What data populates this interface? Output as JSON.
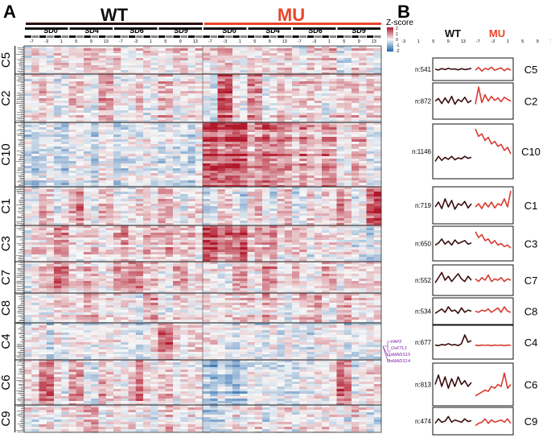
{
  "panels": {
    "a": "A",
    "b": "B"
  },
  "groups": [
    {
      "name": "WT",
      "color": "#111111"
    },
    {
      "name": "MU",
      "color": "#e8452a"
    }
  ],
  "timepoints": [
    "SD0",
    "SD4",
    "SD6",
    "SD9"
  ],
  "wt_ticks": [
    "-7",
    "-3",
    "1",
    "5",
    "9",
    "13",
    "-7",
    "-3",
    "1",
    "5",
    "9",
    "13",
    "-7",
    "-3",
    "1",
    "5",
    "9",
    "13",
    "-7",
    "-3",
    "1",
    "5",
    "9",
    "13"
  ],
  "mu_ticks": [
    "-7",
    "-3",
    "1",
    "5",
    "9",
    "13",
    "-7",
    "-3",
    "1",
    "5",
    "9",
    "13",
    "-7",
    "-3",
    "1",
    "5",
    "9",
    "13",
    "-7",
    "-3",
    "1",
    "5",
    "9",
    "13"
  ],
  "colorbar": {
    "title": "Z-score",
    "ticks": [
      "2",
      "1",
      "0",
      "-1",
      "-2"
    ],
    "high": "#b2182b",
    "mid": "#f7f7f7",
    "low": "#2166ac"
  },
  "genes": [
    "FAP2",
    "OsFTL1",
    "OsMADS15",
    "OsMADS14"
  ],
  "chart_data": {
    "type": "heatmap",
    "clusters": [
      {
        "name": "C5",
        "n": "n:541",
        "wt": [
          0.5,
          0.54,
          0.46,
          0.52,
          0.45,
          0.5,
          0.48,
          0.53,
          0.47,
          0.52,
          0.49,
          0.45
        ],
        "mu": [
          0.55,
          0.4,
          0.6,
          0.45,
          0.52,
          0.38,
          0.56,
          0.48,
          0.42,
          0.58,
          0.46,
          0.55
        ]
      },
      {
        "name": "C2",
        "n": "n:872",
        "wt": [
          0.5,
          0.42,
          0.58,
          0.4,
          0.56,
          0.35,
          0.6,
          0.45,
          0.52,
          0.38,
          0.55,
          0.48
        ],
        "mu": [
          0.6,
          0.05,
          0.55,
          0.3,
          0.5,
          0.35,
          0.48,
          0.4,
          0.52,
          0.38,
          0.45,
          0.5
        ]
      },
      {
        "name": "C10",
        "n": "n:1146",
        "wt": [
          0.7,
          0.6,
          0.68,
          0.62,
          0.66,
          0.6,
          0.67,
          0.63,
          0.65,
          0.6,
          0.64,
          0.62
        ],
        "mu": [
          0.05,
          0.2,
          0.15,
          0.28,
          0.22,
          0.35,
          0.3,
          0.4,
          0.36,
          0.48,
          0.42,
          0.55
        ]
      },
      {
        "name": "C1",
        "n": "n:719",
        "wt": [
          0.55,
          0.4,
          0.6,
          0.3,
          0.55,
          0.35,
          0.62,
          0.45,
          0.5,
          0.38,
          0.58,
          0.45
        ],
        "mu": [
          0.55,
          0.45,
          0.6,
          0.42,
          0.55,
          0.4,
          0.58,
          0.45,
          0.5,
          0.3,
          0.55,
          0.05
        ]
      },
      {
        "name": "C3",
        "n": "n:650",
        "wt": [
          0.55,
          0.48,
          0.35,
          0.52,
          0.42,
          0.55,
          0.38,
          0.5,
          0.45,
          0.4,
          0.52,
          0.48
        ],
        "mu": [
          0.1,
          0.3,
          0.2,
          0.4,
          0.35,
          0.5,
          0.4,
          0.55,
          0.5,
          0.6,
          0.55,
          0.65
        ]
      },
      {
        "name": "C7",
        "n": "n:552",
        "wt": [
          0.6,
          0.4,
          0.2,
          0.5,
          0.35,
          0.55,
          0.4,
          0.25,
          0.45,
          0.55,
          0.35,
          0.5
        ],
        "mu": [
          0.45,
          0.55,
          0.4,
          0.5,
          0.3,
          0.55,
          0.45,
          0.5,
          0.4,
          0.55,
          0.45,
          0.5
        ]
      },
      {
        "name": "C8",
        "n": "n:534",
        "wt": [
          0.6,
          0.5,
          0.4,
          0.55,
          0.3,
          0.5,
          0.45,
          0.6,
          0.35,
          0.55,
          0.45,
          0.5
        ],
        "mu": [
          0.5,
          0.55,
          0.45,
          0.5,
          0.4,
          0.55,
          0.45,
          0.35,
          0.55,
          0.3,
          0.5,
          0.55
        ]
      },
      {
        "name": "C4",
        "n": "n:677",
        "wt": [
          0.6,
          0.62,
          0.58,
          0.6,
          0.55,
          0.6,
          0.58,
          0.62,
          0.55,
          0.25,
          0.5,
          0.45
        ],
        "mu": [
          0.6,
          0.62,
          0.6,
          0.61,
          0.6,
          0.62,
          0.6,
          0.61,
          0.6,
          0.62,
          0.6,
          0.61
        ]
      },
      {
        "name": "C6",
        "n": "n:813",
        "wt": [
          0.5,
          0.25,
          0.55,
          0.3,
          0.6,
          0.35,
          0.55,
          0.3,
          0.5,
          0.4,
          0.55,
          0.45
        ],
        "mu": [
          0.8,
          0.75,
          0.7,
          0.65,
          0.68,
          0.55,
          0.6,
          0.5,
          0.55,
          0.2,
          0.6,
          0.5
        ]
      },
      {
        "name": "C9",
        "n": "n:474",
        "wt": [
          0.6,
          0.4,
          0.55,
          0.5,
          0.3,
          0.55,
          0.45,
          0.5,
          0.55,
          0.4,
          0.52,
          0.48
        ],
        "mu": [
          0.7,
          0.6,
          0.55,
          0.4,
          0.6,
          0.45,
          0.55,
          0.5,
          0.45,
          0.55,
          0.4,
          0.6
        ]
      }
    ]
  }
}
